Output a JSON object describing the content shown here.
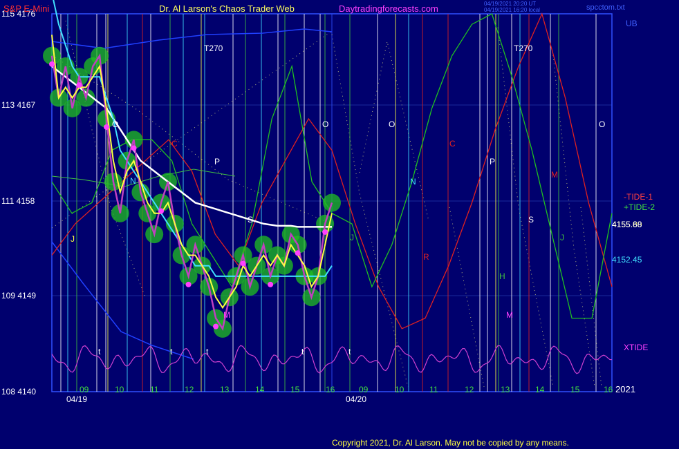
{
  "header": {
    "symbol": "S&P E-Mini",
    "title": "Dr. Al Larson's Chaos Trader Web",
    "site": "Daytradingforecasts.com",
    "timestamp1": "04/19/2021 20:20 UT",
    "timestamp2": "04/19/2021 16:20 local",
    "filename": "spcctom.txt"
  },
  "footer": {
    "copyright": "Copyright 2021, Dr. Al Larson. May not be copied by any means."
  },
  "colors": {
    "background": "#00006e",
    "grid": "#1a2a9a",
    "price": "#c040c0",
    "moving_avg_yellow": "#ffff40",
    "moving_avg_cyan": "#40e0ff",
    "moving_avg_white": "#ffffff",
    "tide1": "#e02020",
    "tide2": "#20c020",
    "xtide": "#d040d0",
    "glow": "#20c020",
    "bands": "#2040ff"
  },
  "chart_data": {
    "type": "line",
    "title": "S&P E-Mini",
    "xlabel": "",
    "ylabel": "",
    "y_ticks": [
      {
        "label": "115 4176",
        "value": 4176
      },
      {
        "label": "113 4167",
        "value": 4167
      },
      {
        "label": "111 4158",
        "value": 4158
      },
      {
        "label": "109 4149",
        "value": 4149
      },
      {
        "label": "108 4140",
        "value": 4140
      }
    ],
    "x_hour_labels": [
      "09",
      "10",
      "11",
      "12",
      "13",
      "14",
      "15",
      "16",
      "09",
      "10",
      "11",
      "12",
      "13",
      "14",
      "15",
      "16"
    ],
    "date_labels": [
      "04/19",
      "04/20"
    ],
    "year_label": "2021",
    "vertical_letters": [
      {
        "text": "T270"
      },
      {
        "text": "O"
      },
      {
        "text": "C"
      },
      {
        "text": "N"
      },
      {
        "text": "P"
      },
      {
        "text": "S"
      },
      {
        "text": "J"
      },
      {
        "text": "M"
      },
      {
        "text": "O"
      },
      {
        "text": "J"
      },
      {
        "text": "O"
      },
      {
        "text": "N"
      },
      {
        "text": "R"
      },
      {
        "text": "C"
      },
      {
        "text": "P"
      },
      {
        "text": "H"
      },
      {
        "text": "M"
      },
      {
        "text": "T270"
      },
      {
        "text": "S"
      },
      {
        "text": "J"
      },
      {
        "text": "M"
      },
      {
        "text": "O"
      },
      {
        "text": "t"
      },
      {
        "text": "t"
      },
      {
        "text": "t"
      },
      {
        "text": "t"
      },
      {
        "text": "t"
      }
    ],
    "right_labels": {
      "ub": "UB",
      "tide1": "-TIDE-1",
      "tide2": "+TIDE-2",
      "last_price_a": "4155.68",
      "last_price_b": "4155.80",
      "cyan_level": "4152.45",
      "xtide": "XTIDE"
    },
    "series": [
      {
        "name": "price",
        "values": [
          4172,
          4168,
          4171,
          4167,
          4170,
          4168,
          4171,
          4172,
          4166,
          4160,
          4157,
          4162,
          4164,
          4159,
          4157,
          4155,
          4158,
          4160,
          4156,
          4153,
          4151,
          4154,
          4152,
          4150,
          4147,
          4146,
          4149,
          4151,
          4153,
          4150,
          4152,
          4154,
          4151,
          4153,
          4152,
          4155,
          4154,
          4151,
          4149,
          4151,
          4156,
          4158
        ]
      },
      {
        "name": "yellow_avg",
        "values": [
          4174,
          4168,
          4169,
          4168,
          4169,
          4169,
          4170,
          4171,
          4167,
          4162,
          4159,
          4161,
          4162,
          4160,
          4158,
          4157,
          4157,
          4158,
          4156,
          4154,
          4153,
          4153,
          4152,
          4151,
          4149,
          4148,
          4149,
          4150,
          4152,
          4151,
          4152,
          4153,
          4152,
          4153,
          4152,
          4154,
          4153,
          4152,
          4150,
          4151,
          4154,
          4157
        ]
      },
      {
        "name": "cyan_avg",
        "values": [
          4178,
          4175,
          4173,
          4171,
          4170,
          4170,
          4170,
          4170,
          4168,
          4166,
          4163,
          4162,
          4161,
          4160,
          4159,
          4158,
          4157,
          4156,
          4155,
          4154,
          4153,
          4152,
          4152,
          4152,
          4151,
          4151,
          4151,
          4151,
          4151,
          4151,
          4151,
          4151,
          4151,
          4151,
          4151,
          4151,
          4151,
          4151,
          4151,
          4151,
          4151,
          4152
        ]
      },
      {
        "name": "white_avg",
        "values": [
          4171,
          4170.5,
          4170,
          4169.5,
          4169,
          4168.5,
          4168,
          4167.5,
          4167,
          4166,
          4165,
          4164,
          4163,
          4162,
          4161.5,
          4161,
          4160.5,
          4160,
          4159.5,
          4159,
          4158.5,
          4158,
          4157.8,
          4157.6,
          4157.4,
          4157.2,
          4157,
          4156.8,
          4156.6,
          4156.4,
          4156.2,
          4156,
          4155.9,
          4155.8,
          4155.8,
          4155.8,
          4155.7,
          4155.7,
          4155.7,
          4155.7,
          4155.7,
          4155.7
        ]
      },
      {
        "name": "TIDE-1",
        "values": [
          4153,
          4156,
          4158,
          4160,
          4162,
          4164,
          4161,
          4155,
          4152,
          4158,
          4162,
          4166,
          4163,
          4156,
          4150,
          4146,
          4147,
          4152,
          4158,
          4165,
          4171,
          4176,
          4168,
          4158,
          4150
        ]
      },
      {
        "name": "TIDE-2",
        "values": [
          4160,
          4157,
          4158,
          4163,
          4164,
          4164,
          4162,
          4156,
          4153,
          4150,
          4156,
          4166,
          4171,
          4160,
          4157,
          4156,
          4150,
          4154,
          4160,
          4167,
          4172,
          4175,
          4176,
          4170,
          4163,
          4155,
          4147,
          4147,
          4157
        ]
      }
    ]
  }
}
